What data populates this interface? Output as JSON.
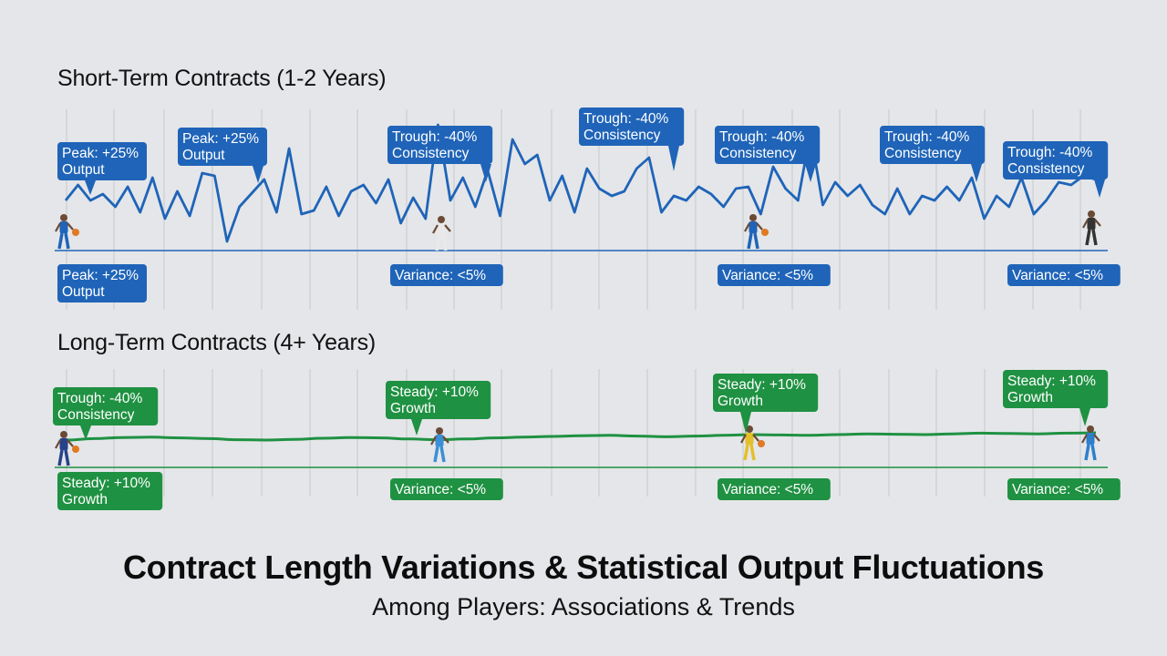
{
  "title": "Contract Length Variations & Statistical Output Fluctuations",
  "subtitle": "Among Players: Associations & Trends",
  "colors": {
    "short": "#1f64b8",
    "long": "#1f9142",
    "grid": "#c6c9cd",
    "background": "#e4e6e9"
  },
  "chart_data": [
    {
      "type": "line",
      "title": "Short-Term Contracts (1-2 Years)",
      "series": [
        {
          "values": [
            0.55,
            0.72,
            0.55,
            0.62,
            0.48,
            0.7,
            0.42,
            0.8,
            0.35,
            0.65,
            0.38,
            0.85,
            0.82,
            0.1,
            0.48,
            0.63,
            0.78,
            0.42,
            1.12,
            0.4,
            0.44,
            0.7,
            0.38,
            0.65,
            0.72,
            0.52,
            0.78,
            0.3,
            0.58,
            0.35,
            1.38,
            0.55,
            0.8,
            0.48,
            0.88,
            0.38,
            1.22,
            0.95,
            1.05,
            0.55,
            0.82,
            0.42,
            0.9,
            0.68,
            0.6,
            0.65,
            0.9,
            1.02,
            0.42,
            0.6,
            0.55,
            0.7,
            0.62,
            0.48,
            0.68,
            0.7,
            0.4,
            0.92,
            0.68,
            0.55,
            1.3,
            0.5,
            0.75,
            0.6,
            0.72,
            0.5,
            0.4,
            0.68,
            0.4,
            0.6,
            0.55,
            0.7,
            0.55,
            0.8,
            0.35,
            0.6,
            0.48,
            0.8,
            0.4,
            0.55,
            0.75,
            0.72,
            0.82,
            0.78
          ]
        }
      ],
      "baseline": 0,
      "callouts_above": [
        {
          "line1": "Peak: +25%",
          "line2": "Output"
        },
        {
          "line1": "Peak: +25%",
          "line2": "Output"
        },
        {
          "line1": "Trough: -40%",
          "line2": "Consistency"
        },
        {
          "line1": "Trough: -40%",
          "line2": "Consistency"
        },
        {
          "line1": "Trough: -40%",
          "line2": "Consistency"
        },
        {
          "line1": "Trough: -40%",
          "line2": "Consistency"
        },
        {
          "line1": "Trough: -40%",
          "line2": "Consistency"
        }
      ],
      "callouts_below": [
        {
          "line1": "Peak: +25%",
          "line2": "Output"
        },
        {
          "line1": "Variance: <5%"
        },
        {
          "line1": "Variance: <5%"
        },
        {
          "line1": "Variance: <5%"
        }
      ]
    },
    {
      "type": "line",
      "title": "Long-Term Contracts (4+ Years)",
      "series": [
        {
          "values": [
            0.75,
            0.79,
            0.82,
            0.83,
            0.81,
            0.79,
            0.76,
            0.75,
            0.77,
            0.8,
            0.82,
            0.81,
            0.78,
            0.76,
            0.78,
            0.81,
            0.83,
            0.85,
            0.87,
            0.88,
            0.86,
            0.84,
            0.86,
            0.88,
            0.9,
            0.89,
            0.88,
            0.9,
            0.92,
            0.91,
            0.9,
            0.92,
            0.94,
            0.93,
            0.92,
            0.94,
            0.95
          ]
        }
      ],
      "baseline": 0,
      "callouts_above": [
        {
          "line1": "Trough: -40%",
          "line2": "Consistency"
        },
        {
          "line1": "Steady: +10%",
          "line2": "Growth"
        },
        {
          "line1": "Steady: +10%",
          "line2": "Growth"
        },
        {
          "line1": "Steady: +10%",
          "line2": "Growth"
        }
      ],
      "callouts_below": [
        {
          "line1": "Steady: +10%",
          "line2": "Growth"
        },
        {
          "line1": "Variance: <5%"
        },
        {
          "line1": "Variance: <5%"
        },
        {
          "line1": "Variance: <5%"
        }
      ]
    }
  ]
}
